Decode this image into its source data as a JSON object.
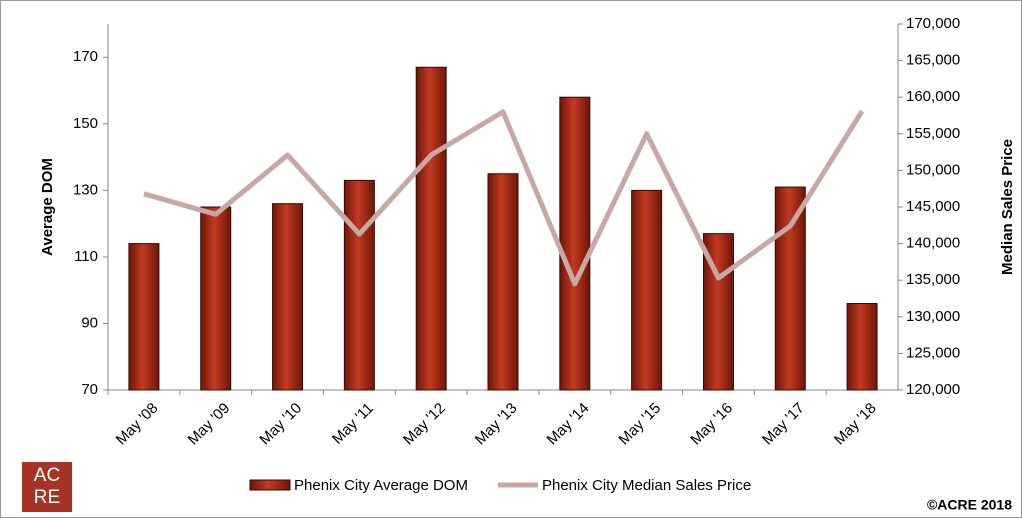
{
  "chart_data": {
    "type": "bar_line",
    "categories": [
      "May '08",
      "May '09",
      "May '10",
      "May '11",
      "May '12",
      "May '13",
      "May '14",
      "May '15",
      "May '16",
      "May '17",
      "May '18"
    ],
    "series": [
      {
        "name": "Phenix City Average DOM",
        "color": "#a02a18",
        "type": "bar",
        "axis": "y",
        "values": [
          114,
          125,
          126,
          133,
          167,
          135,
          158,
          130,
          117,
          131,
          96
        ]
      },
      {
        "name": "Phenix City Median Sales Price",
        "color": "#c8a8a4",
        "type": "line",
        "axis": "y2",
        "values": [
          146800,
          144000,
          152100,
          141300,
          152100,
          158000,
          134500,
          155000,
          135300,
          142400,
          158100
        ]
      }
    ],
    "ylabel": "Average DOM",
    "y2label": "Median Sales Price",
    "ylim": [
      70,
      180
    ],
    "yticks": [
      70,
      90,
      110,
      130,
      150,
      170
    ],
    "y2lim": [
      120000,
      170000
    ],
    "y2ticks": [
      {
        "value": 120000,
        "label": "120,000"
      },
      {
        "value": 125000,
        "label": "125,000"
      },
      {
        "value": 130000,
        "label": "130,000"
      },
      {
        "value": 135000,
        "label": "135,000"
      },
      {
        "value": 140000,
        "label": "140,000"
      },
      {
        "value": 145000,
        "label": "145,000"
      },
      {
        "value": 150000,
        "label": "150,000"
      },
      {
        "value": 155000,
        "label": "155,000"
      },
      {
        "value": 160000,
        "label": "160,000"
      },
      {
        "value": 165000,
        "label": "165,000"
      },
      {
        "value": 170000,
        "label": "170,000"
      }
    ],
    "legend": "bottom",
    "copyright": "©ACRE 2018",
    "logo": [
      "AC",
      "RE"
    ]
  }
}
